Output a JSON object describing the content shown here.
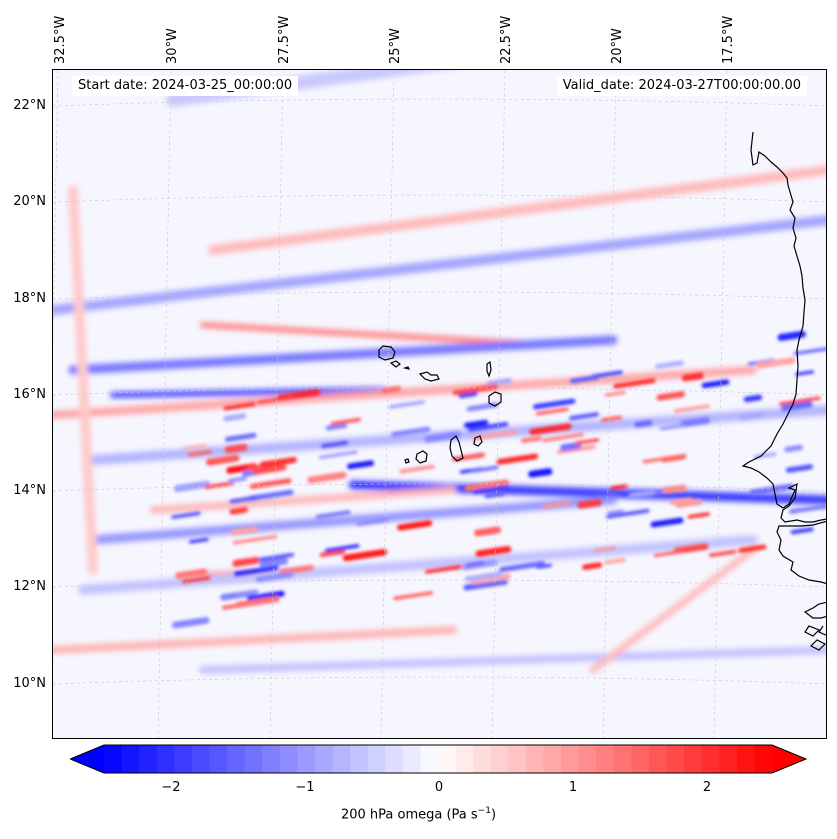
{
  "map": {
    "start_date": "Start date: 2024-03-25_00:00:00",
    "valid_date": "Valid_date: 2024-03-27T00:00:00.00",
    "variable": "200 hPa omega",
    "lon_labels": [
      "32.5°W",
      "30°W",
      "27.5°W",
      "25°W",
      "22.5°W",
      "20°W",
      "17.5°W"
    ],
    "lat_labels": [
      "22°N",
      "20°N",
      "18°N",
      "16°N",
      "14°N",
      "12°N",
      "10°N"
    ],
    "lon_range": [
      -32.7,
      -15.5
    ],
    "lat_range": [
      8.9,
      22.8
    ],
    "colors": {
      "negative": "#0000ff",
      "positive": "#ff0000",
      "zero": "#ffffff",
      "coastline": "#000000",
      "gridline": "#c8c8c8"
    },
    "islands": [
      "Cabo Verde"
    ],
    "coast": "West Africa"
  },
  "colorbar": {
    "min": -2.5,
    "max": 2.5,
    "ticks": [
      "−2",
      "−1",
      "0",
      "1",
      "2"
    ],
    "tick_values": [
      -2,
      -1,
      0,
      1,
      2
    ],
    "label": "200 hPa omega (Pa s",
    "label_exp": "−1",
    "label_end": ")"
  }
}
